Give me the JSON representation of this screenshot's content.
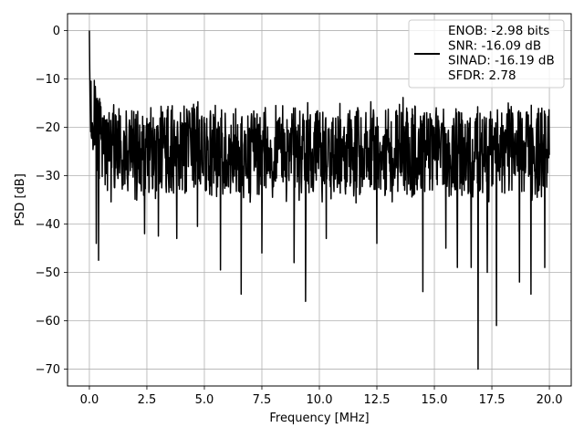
{
  "chart_data": {
    "type": "line",
    "title": "",
    "xlabel": "Frequency [MHz]",
    "ylabel": "PSD [dB]",
    "xlim": [
      -0.95,
      20.95
    ],
    "ylim": [
      -73.5,
      3.5
    ],
    "xticks": [
      0.0,
      2.5,
      5.0,
      7.5,
      10.0,
      12.5,
      15.0,
      17.5,
      20.0
    ],
    "xtick_labels": [
      "0.0",
      "2.5",
      "5.0",
      "7.5",
      "10.0",
      "12.5",
      "15.0",
      "17.5",
      "20.0"
    ],
    "yticks": [
      0,
      -10,
      -20,
      -30,
      -40,
      -50,
      -60,
      -70
    ],
    "ytick_labels": [
      "0",
      "−10",
      "−20",
      "−30",
      "−40",
      "−50",
      "−60",
      "−70"
    ],
    "grid": true,
    "legend_position": "top-right",
    "line_color": "#000000",
    "series": [
      {
        "legend_lines": [
          "ENOB: -2.98 bits",
          "SNR: -16.09 dB",
          "SINAD: -16.19 dB",
          "SFDR: 2.78"
        ],
        "x_range": [
          0.0,
          20.0
        ],
        "peak": {
          "x": 0.0,
          "y": 0.0
        },
        "noise_band": {
          "upper": -15,
          "lower": -35
        },
        "notable_dips": [
          {
            "x": 0.4,
            "y": -47.5
          },
          {
            "x": 0.3,
            "y": -44
          },
          {
            "x": 2.4,
            "y": -42
          },
          {
            "x": 3.0,
            "y": -42.5
          },
          {
            "x": 3.8,
            "y": -43
          },
          {
            "x": 4.7,
            "y": -40.5
          },
          {
            "x": 5.7,
            "y": -49.5
          },
          {
            "x": 6.6,
            "y": -54.5
          },
          {
            "x": 7.5,
            "y": -46
          },
          {
            "x": 8.9,
            "y": -48
          },
          {
            "x": 9.4,
            "y": -56
          },
          {
            "x": 10.3,
            "y": -43
          },
          {
            "x": 12.5,
            "y": -44
          },
          {
            "x": 14.5,
            "y": -54
          },
          {
            "x": 15.5,
            "y": -45
          },
          {
            "x": 16.0,
            "y": -49
          },
          {
            "x": 16.6,
            "y": -49
          },
          {
            "x": 16.9,
            "y": -70
          },
          {
            "x": 17.3,
            "y": -50
          },
          {
            "x": 17.7,
            "y": -61
          },
          {
            "x": 18.7,
            "y": -52
          },
          {
            "x": 19.2,
            "y": -54.5
          },
          {
            "x": 19.8,
            "y": -49
          }
        ]
      }
    ]
  }
}
